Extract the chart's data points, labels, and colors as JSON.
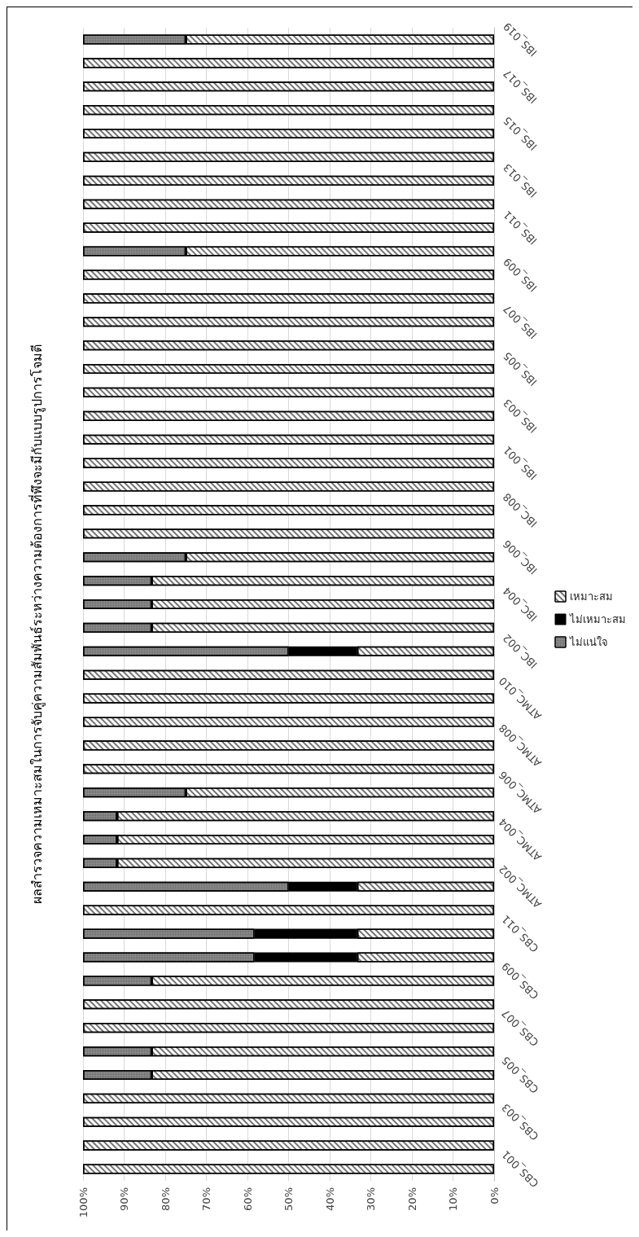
{
  "chart_data": {
    "type": "bar",
    "stacked": true,
    "orientation": "horizontal",
    "title": "ผลสำรวจความเหมาะสมในการจับคู่ความสัมพันธ์ระหว่างความต้องการที่พึงจะมีกับแบบรูปการโจมตี",
    "categories": [
      "IBS_019",
      null,
      "IBS_017",
      null,
      "IBS_015",
      null,
      "IBS_013",
      null,
      "IBS_011",
      null,
      "IBS_009",
      null,
      "IBS_007",
      null,
      "IBS_005",
      null,
      "IBS_003",
      null,
      "IBS_001",
      null,
      "IBC_008",
      null,
      "IBC_006",
      null,
      "IBC_004",
      null,
      "IBC_002",
      null,
      "ATMC_010",
      null,
      "ATMC_008",
      null,
      "ATMC_006",
      null,
      "ATMC_004",
      null,
      "ATMC_002",
      null,
      "CBS_011",
      null,
      "CBS_009",
      null,
      "CBS_007",
      null,
      "CBS_005",
      null,
      "CBS_003",
      null,
      "CBS_001"
    ],
    "series": [
      {
        "name": "เหมาะสม",
        "color": "#ffffff",
        "values": [
          75,
          100,
          100,
          100,
          100,
          100,
          100,
          100,
          100,
          75,
          100,
          100,
          100,
          100,
          100,
          100,
          100,
          100,
          100,
          100,
          100,
          100,
          75,
          83.3,
          83.3,
          83.3,
          33.3,
          100,
          100,
          100,
          100,
          100,
          75,
          91.7,
          91.7,
          91.7,
          33.3,
          100,
          33.3,
          33.3,
          83.3,
          100,
          100,
          83.3,
          83.3,
          100,
          100,
          100,
          100
        ]
      },
      {
        "name": "ไม่เหมาะสม",
        "color": "#000000",
        "values": [
          0,
          0,
          0,
          0,
          0,
          0,
          0,
          0,
          0,
          0,
          0,
          0,
          0,
          0,
          0,
          0,
          0,
          0,
          0,
          0,
          0,
          0,
          0,
          0,
          0,
          0,
          16.7,
          0,
          0,
          0,
          0,
          0,
          0,
          0,
          0,
          0,
          16.7,
          0,
          25,
          25,
          0,
          0,
          0,
          0,
          0,
          0,
          0,
          0,
          0
        ]
      },
      {
        "name": "ไม่แน่ใจ",
        "color": "#8c8c8c",
        "values": [
          25,
          0,
          0,
          0,
          0,
          0,
          0,
          0,
          0,
          25,
          0,
          0,
          0,
          0,
          0,
          0,
          0,
          0,
          0,
          0,
          0,
          0,
          25,
          16.7,
          16.7,
          16.7,
          50,
          0,
          0,
          0,
          0,
          0,
          25,
          8.3,
          8.3,
          8.3,
          50,
          0,
          41.7,
          41.7,
          16.7,
          0,
          0,
          16.7,
          16.7,
          0,
          0,
          0,
          0
        ]
      }
    ],
    "xlim": [
      100,
      0
    ],
    "xticks": [
      {
        "value": 100,
        "label": "100%"
      },
      {
        "value": 90,
        "label": "90%"
      },
      {
        "value": 80,
        "label": "80%"
      },
      {
        "value": 70,
        "label": "70%"
      },
      {
        "value": 60,
        "label": "60%"
      },
      {
        "value": 50,
        "label": "50%"
      },
      {
        "value": 40,
        "label": "40%"
      },
      {
        "value": 30,
        "label": "30%"
      },
      {
        "value": 20,
        "label": "20%"
      },
      {
        "value": 10,
        "label": "10%"
      },
      {
        "value": 0,
        "label": "0%"
      }
    ],
    "grid": "x",
    "legend": "right"
  }
}
